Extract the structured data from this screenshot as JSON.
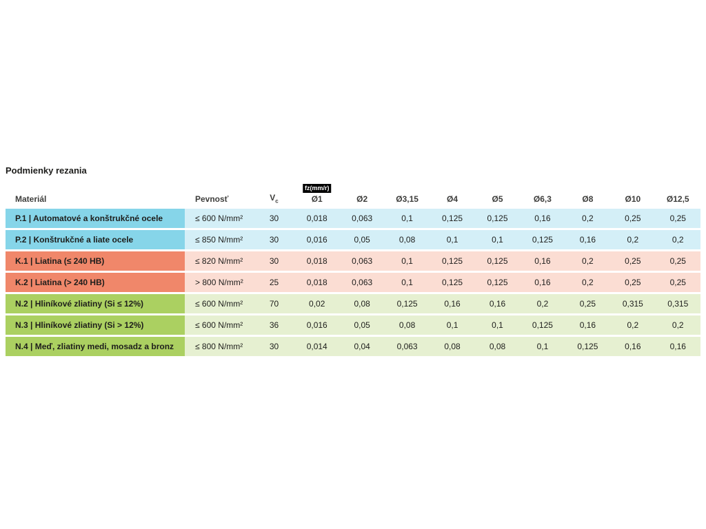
{
  "title": "Podmienky rezania",
  "colors": {
    "blue_label": "#86d5e9",
    "blue_cell": "#d4eff7",
    "red_label": "#f0876a",
    "red_cell": "#fbddd3",
    "green_label": "#abd061",
    "green_cell": "#e6f0d1",
    "badge_bg": "#000000",
    "badge_text": "#ffffff"
  },
  "table": {
    "headers": {
      "material": "Materiál",
      "strength": "Pevnosť",
      "vc": "V",
      "vc_sub": "c",
      "feed_badge": "fz(mm/r)",
      "diameters": [
        "Ø1",
        "Ø2",
        "Ø3,15",
        "Ø4",
        "Ø5",
        "Ø6,3",
        "Ø8",
        "Ø10",
        "Ø12,5"
      ]
    },
    "rows": [
      {
        "group": "blue",
        "label": "P.1 | Automatové a konštrukčné ocele",
        "strength": "≤ 600 N/mm²",
        "vc": "30",
        "feeds": [
          "0,018",
          "0,063",
          "0,1",
          "0,125",
          "0,125",
          "0,16",
          "0,2",
          "0,25",
          "0,25"
        ]
      },
      {
        "group": "blue",
        "label": "P.2 | Konštrukčné a liate ocele",
        "strength": "≤ 850 N/mm²",
        "vc": "30",
        "feeds": [
          "0,016",
          "0,05",
          "0,08",
          "0,1",
          "0,1",
          "0,125",
          "0,16",
          "0,2",
          "0,2"
        ]
      },
      {
        "group": "red",
        "label": "K.1 | Liatina (≤ 240 HB)",
        "strength": "≤ 820 N/mm²",
        "vc": "30",
        "feeds": [
          "0,018",
          "0,063",
          "0,1",
          "0,125",
          "0,125",
          "0,16",
          "0,2",
          "0,25",
          "0,25"
        ]
      },
      {
        "group": "red",
        "label": "K.2 | Liatina (> 240 HB)",
        "strength": "> 800 N/mm²",
        "vc": "25",
        "feeds": [
          "0,018",
          "0,063",
          "0,1",
          "0,125",
          "0,125",
          "0,16",
          "0,2",
          "0,25",
          "0,25"
        ]
      },
      {
        "group": "green",
        "label": "N.2 | Hliníkové zliatiny (Si ≤ 12%)",
        "strength": "≤ 600 N/mm²",
        "vc": "70",
        "feeds": [
          "0,02",
          "0,08",
          "0,125",
          "0,16",
          "0,16",
          "0,2",
          "0,25",
          "0,315",
          "0,315"
        ]
      },
      {
        "group": "green",
        "label": "N.3 | Hliníkové zliatiny (Si > 12%)",
        "strength": "≤ 600 N/mm²",
        "vc": "36",
        "feeds": [
          "0,016",
          "0,05",
          "0,08",
          "0,1",
          "0,1",
          "0,125",
          "0,16",
          "0,2",
          "0,2"
        ]
      },
      {
        "group": "green",
        "label": "N.4 | Meď, zliatiny medi, mosadz a bronz",
        "strength": "≤ 800 N/mm²",
        "vc": "30",
        "feeds": [
          "0,014",
          "0,04",
          "0,063",
          "0,08",
          "0,08",
          "0,1",
          "0,125",
          "0,16",
          "0,16"
        ]
      }
    ]
  }
}
